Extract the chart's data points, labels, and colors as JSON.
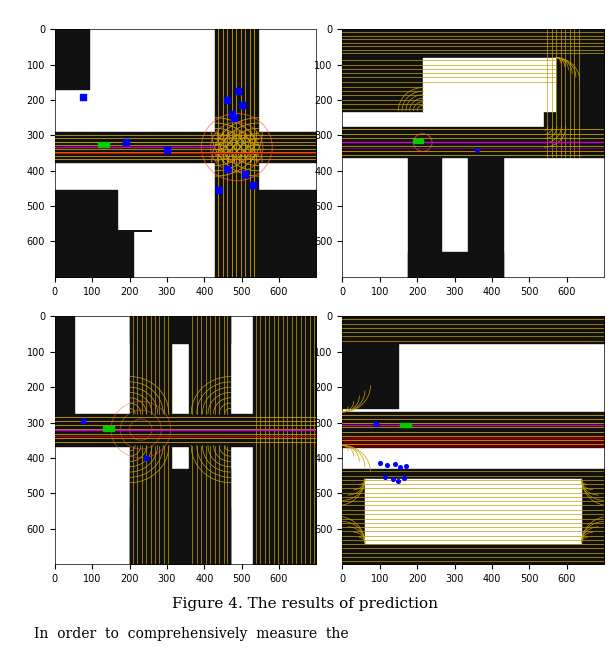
{
  "figsize": [
    6.1,
    6.52
  ],
  "dpi": 100,
  "caption": "Figure 4. The results of prediction",
  "subplots": [
    {
      "xlim": [
        0,
        700
      ],
      "ylim": [
        700,
        0
      ],
      "xticks": [
        0,
        100,
        200,
        300,
        400,
        500,
        600
      ],
      "yticks": [
        0,
        100,
        200,
        300,
        400,
        500,
        600
      ]
    },
    {
      "xlim": [
        0,
        700
      ],
      "ylim": [
        700,
        0
      ],
      "xticks": [
        0,
        100,
        200,
        300,
        400,
        500,
        600
      ],
      "yticks": [
        0,
        100,
        200,
        300,
        400,
        500,
        600
      ]
    },
    {
      "xlim": [
        0,
        700
      ],
      "ylim": [
        700,
        0
      ],
      "xticks": [
        0,
        100,
        200,
        300,
        400,
        500,
        600
      ],
      "yticks": [
        0,
        100,
        200,
        300,
        400,
        500,
        600
      ]
    },
    {
      "xlim": [
        0,
        700
      ],
      "ylim": [
        700,
        0
      ],
      "xticks": [
        0,
        100,
        200,
        300,
        400,
        500,
        600
      ],
      "yticks": [
        0,
        100,
        200,
        300,
        400,
        500,
        600
      ]
    }
  ],
  "road_color": "#111111",
  "lane_color": "#C8A000",
  "bg_color": "#ffffff"
}
